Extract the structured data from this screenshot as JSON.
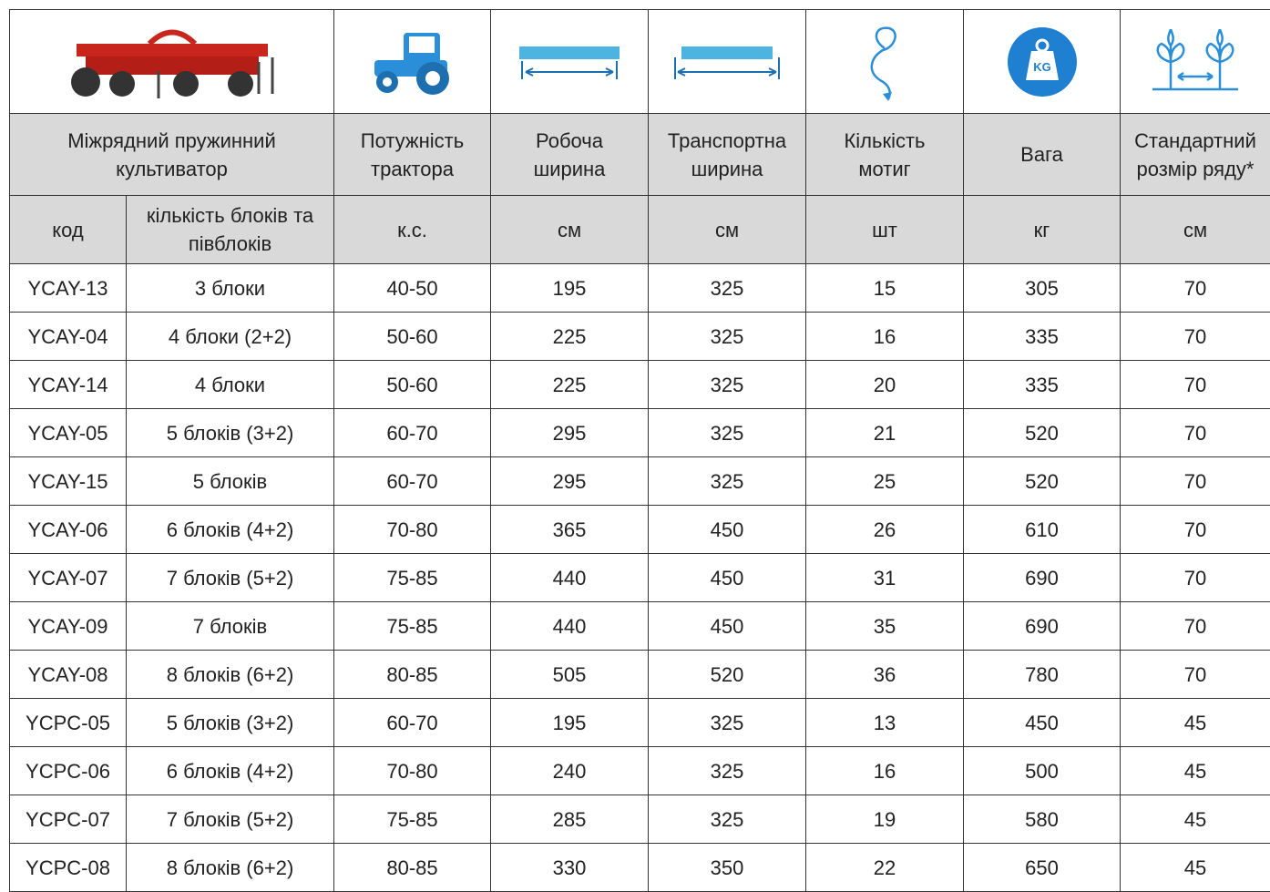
{
  "header": {
    "product": "Міжрядний пружинний культиватор",
    "columns": [
      "Потужність трактора",
      "Робоча ширина",
      "Транспортна ширина",
      "Кількість мотиг",
      "Вага",
      "Стандартний розмір ряду*"
    ]
  },
  "units": [
    "код",
    "кількість блоків та півблоків",
    "к.с.",
    "см",
    "см",
    "шт",
    "кг",
    "см"
  ],
  "table": {
    "rows": [
      [
        "YCAY-13",
        "3 блоки",
        "40-50",
        195,
        325,
        15,
        305,
        70
      ],
      [
        "YCAY-04",
        "4 блоки (2+2)",
        "50-60",
        225,
        325,
        16,
        335,
        70
      ],
      [
        "YCAY-14",
        "4 блоки",
        "50-60",
        225,
        325,
        20,
        335,
        70
      ],
      [
        "YCAY-05",
        "5 блоків (3+2)",
        "60-70",
        295,
        325,
        21,
        520,
        70
      ],
      [
        "YCAY-15",
        "5 блоків",
        "60-70",
        295,
        325,
        25,
        520,
        70
      ],
      [
        "YCAY-06",
        "6 блоків (4+2)",
        "70-80",
        365,
        450,
        26,
        610,
        70
      ],
      [
        "YCAY-07",
        "7 блоків (5+2)",
        "75-85",
        440,
        450,
        31,
        690,
        70
      ],
      [
        "YCAY-09",
        "7 блоків",
        "75-85",
        440,
        450,
        35,
        690,
        70
      ],
      [
        "YCAY-08",
        "8 блоків (6+2)",
        "80-85",
        505,
        520,
        36,
        780,
        70
      ],
      [
        "YCPC-05",
        "5 блоків (3+2)",
        "60-70",
        195,
        325,
        13,
        450,
        45
      ],
      [
        "YCPC-06",
        "6 блоків (4+2)",
        "70-80",
        240,
        325,
        16,
        500,
        45
      ],
      [
        "YCPC-07",
        "7 блоків (5+2)",
        "75-85",
        285,
        325,
        19,
        580,
        45
      ],
      [
        "YCPC-08",
        "8 блоків (6+2)",
        "80-85",
        330,
        350,
        22,
        650,
        45
      ]
    ]
  }
}
